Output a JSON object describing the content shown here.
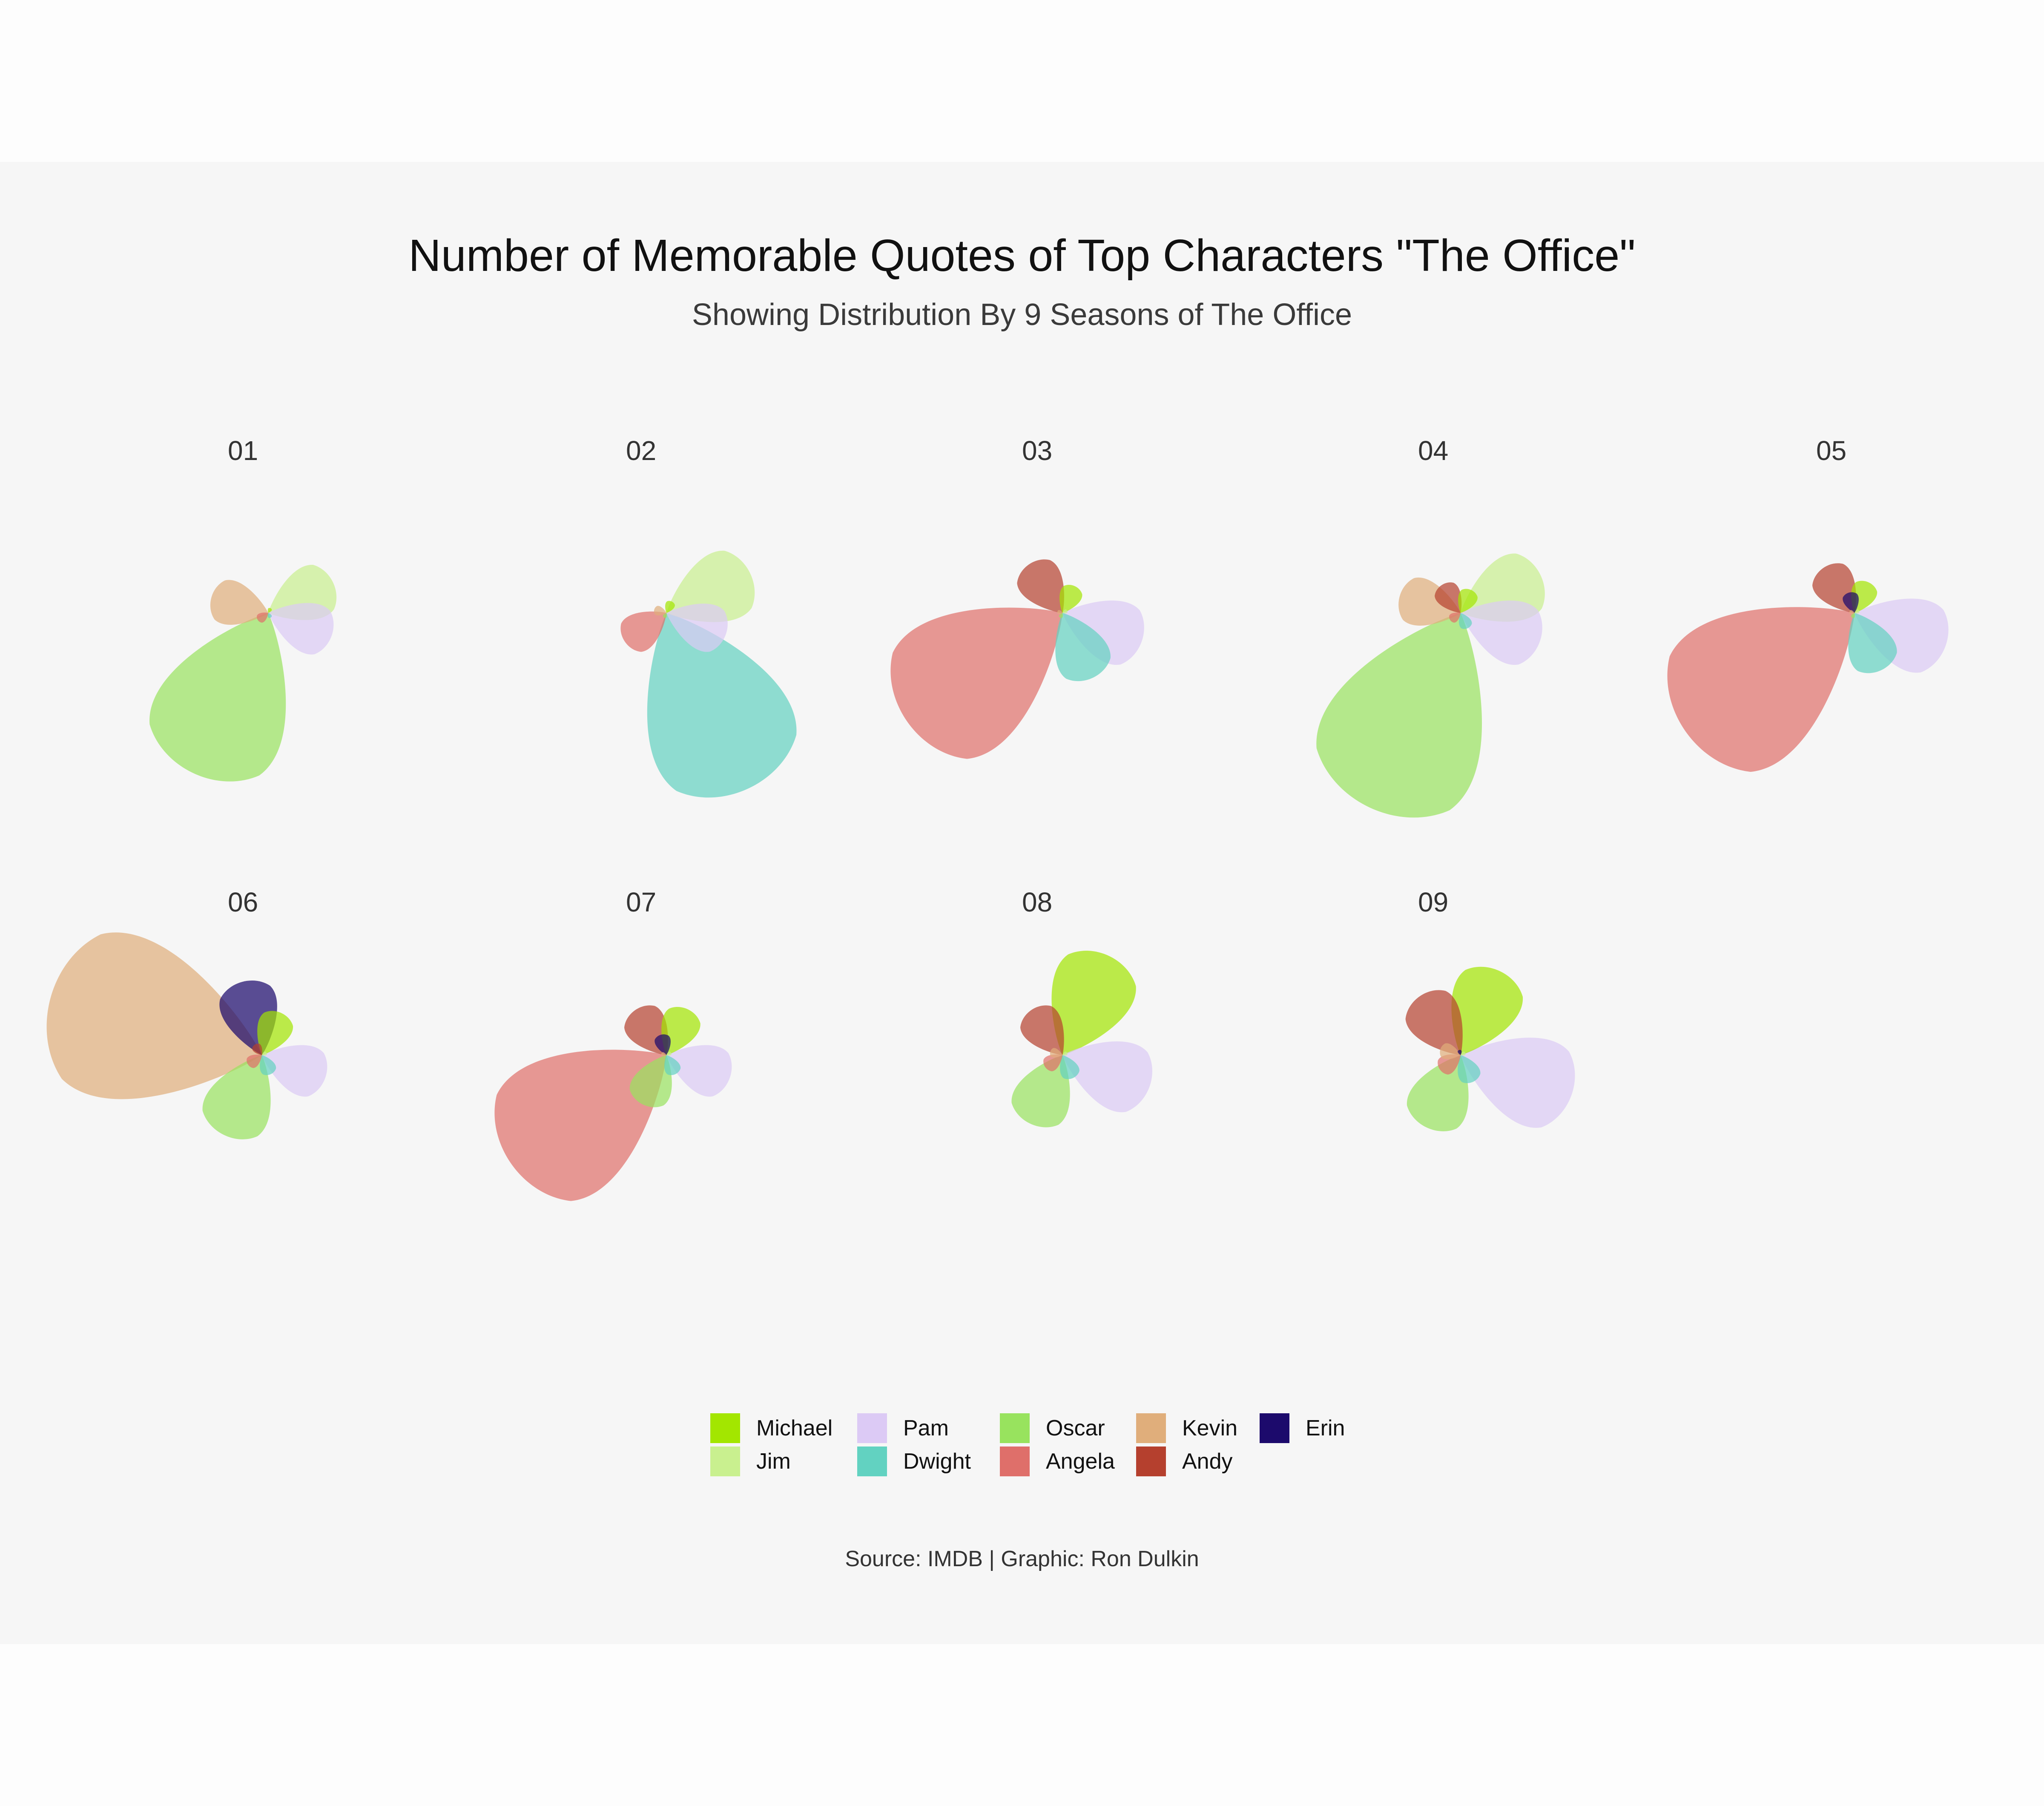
{
  "title": "Number of Memorable Quotes of Top Characters \"The Office\"",
  "subtitle": "Showing Distribution By 9 Seasons of The Office",
  "caption": "Source: IMDB | Graphic: Ron Dulkin",
  "chart_data": {
    "type": "petal-polar",
    "characters": [
      "Michael",
      "Jim",
      "Pam",
      "Dwight",
      "Oscar",
      "Angela",
      "Kevin",
      "Andy",
      "Erin"
    ],
    "colors": {
      "Michael": "#a3e600",
      "Jim": "#c9f08f",
      "Pam": "#dccaf5",
      "Dwight": "#62d2c1",
      "Oscar": "#98e35e",
      "Angela": "#df6f6a",
      "Kevin": "#e0ae7b",
      "Andy": "#b5402e",
      "Erin": "#1c0a6c"
    },
    "facets": [
      {
        "label": "01",
        "values": {
          "Michael": 0.5,
          "Jim": 17,
          "Pam": 16,
          "Dwight": 0.5,
          "Oscar": 42,
          "Angela": 3,
          "Kevin": 14,
          "Andy": 0,
          "Erin": 0
        }
      },
      {
        "label": "02",
        "values": {
          "Michael": 3,
          "Jim": 22,
          "Pam": 15,
          "Dwight": 46,
          "Oscar": 0.5,
          "Angela": 12,
          "Kevin": 3,
          "Andy": 0,
          "Erin": 0
        }
      },
      {
        "label": "03",
        "values": {
          "Michael": 7,
          "Jim": 0.5,
          "Pam": 20,
          "Dwight": 17,
          "Oscar": 0.5,
          "Angela": 45,
          "Kevin": 0.5,
          "Andy": 14,
          "Erin": 0
        }
      },
      {
        "label": "04",
        "values": {
          "Michael": 6,
          "Jim": 21,
          "Pam": 20,
          "Dwight": 4,
          "Oscar": 51,
          "Angela": 3,
          "Kevin": 15,
          "Andy": 8,
          "Erin": 0
        }
      },
      {
        "label": "05",
        "values": {
          "Michael": 8,
          "Jim": 0.5,
          "Pam": 23,
          "Dwight": 15,
          "Oscar": 0.5,
          "Angela": 49,
          "Kevin": 0.5,
          "Andy": 13,
          "Erin": 5
        }
      },
      {
        "label": "06",
        "values": {
          "Michael": 11,
          "Jim": 0.5,
          "Pam": 16,
          "Dwight": 5,
          "Oscar": 21,
          "Angela": 4,
          "Kevin": 52,
          "Andy": 3,
          "Erin": 18
        }
      },
      {
        "label": "07",
        "values": {
          "Michael": 12,
          "Jim": 0.5,
          "Pam": 16,
          "Dwight": 5,
          "Oscar": 13,
          "Angela": 45,
          "Kevin": 0.5,
          "Andy": 13,
          "Erin": 5
        }
      },
      {
        "label": "08",
        "values": {
          "Michael": 26,
          "Jim": 0.5,
          "Pam": 22,
          "Dwight": 6,
          "Oscar": 18,
          "Angela": 5,
          "Kevin": 3,
          "Andy": 13,
          "Erin": 0
        }
      },
      {
        "label": "09",
        "values": {
          "Michael": 22,
          "Jim": 0.5,
          "Pam": 28,
          "Dwight": 7,
          "Oscar": 19,
          "Angela": 6,
          "Kevin": 5,
          "Andy": 17,
          "Erin": 1
        }
      }
    ]
  }
}
